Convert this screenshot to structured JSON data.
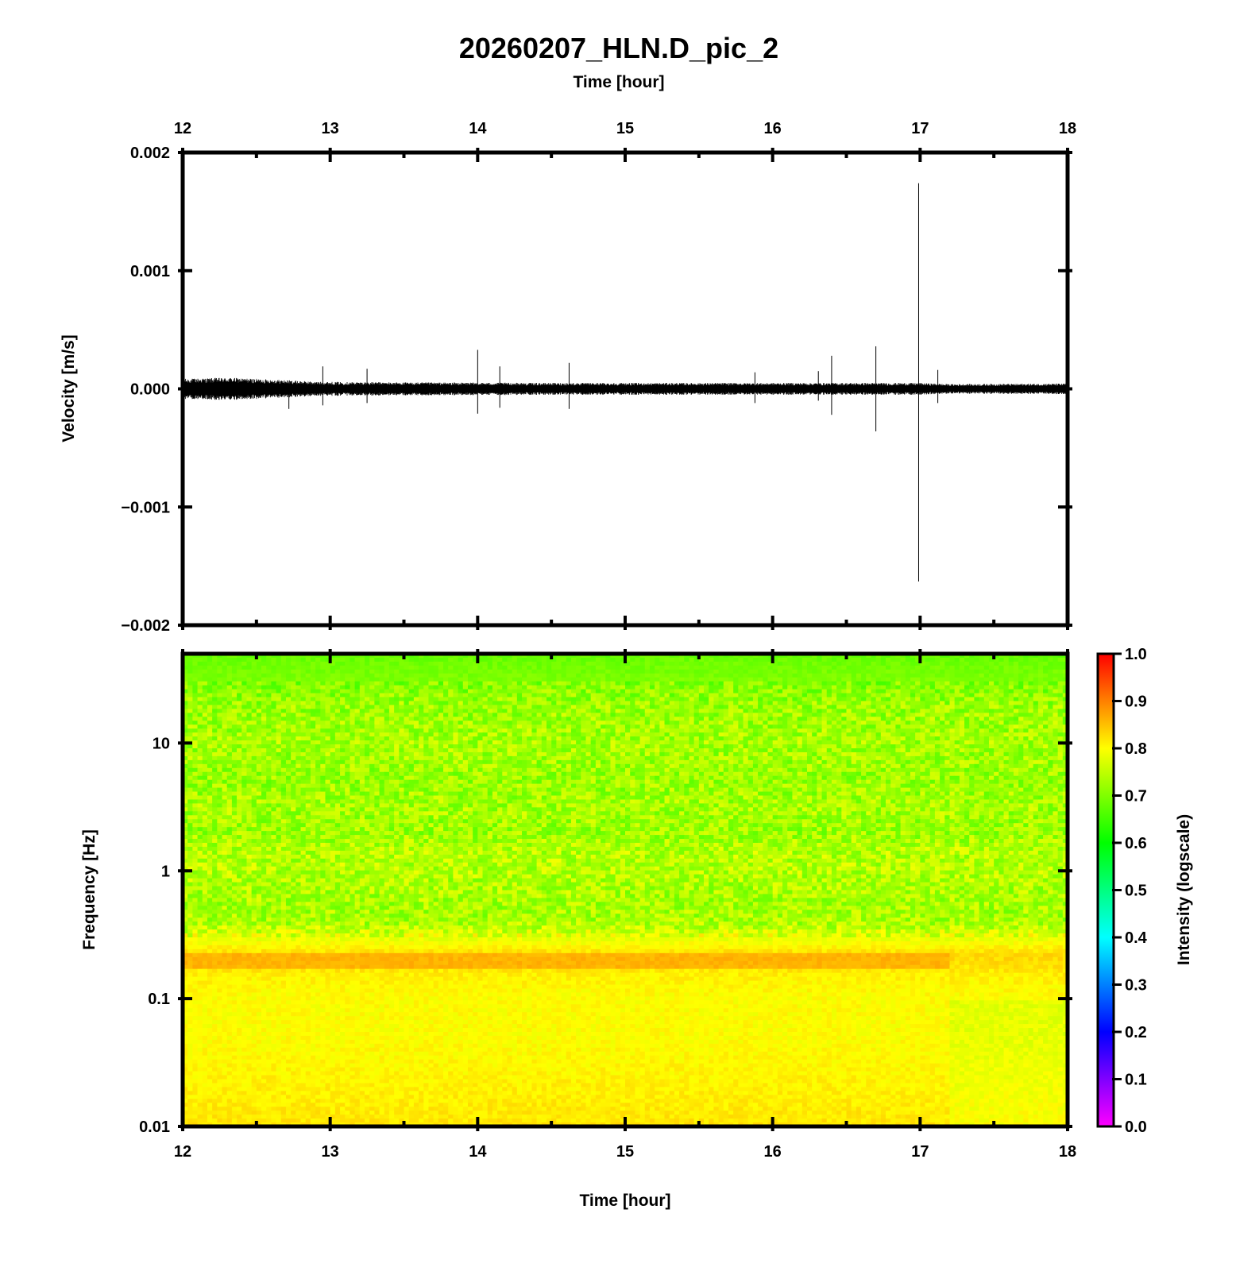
{
  "chart_data": [
    {
      "type": "line",
      "title": "20260207_HLN.D_pic_2",
      "xlabel": "Time [hour]",
      "ylabel": "Velocity [m/s]",
      "xlim": [
        12,
        18
      ],
      "ylim": [
        -0.002,
        0.002
      ],
      "x_ticks": [
        "12",
        "13",
        "14",
        "15",
        "16",
        "17",
        "18"
      ],
      "y_ticks": [
        "0.002",
        "0.001",
        "0.000",
        "−0.001",
        "−0.002"
      ],
      "y_tick_values": [
        0.002,
        0.001,
        0.0,
        -0.001,
        -0.002
      ],
      "grid": false,
      "line_color": "#000000",
      "series": [
        {
          "noise_envelope": {
            "t": [
              12.0,
              12.3,
              12.6,
              12.9,
              13.5,
              14.5,
              15.5,
              16.5,
              17.0,
              17.2,
              18.0
            ],
            "amp": [
              8.5e-05,
              9.5e-05,
              8e-05,
              6e-05,
              5.5e-05,
              5e-05,
              5e-05,
              5e-05,
              5e-05,
              4e-05,
              4.5e-05
            ]
          },
          "spikes": [
            {
              "t": 12.72,
              "max": 4e-05,
              "min": -0.00017
            },
            {
              "t": 12.95,
              "max": 0.00019,
              "min": -0.00014
            },
            {
              "t": 13.25,
              "max": 0.00017,
              "min": -0.00012
            },
            {
              "t": 14.0,
              "max": 0.00033,
              "min": -0.00021
            },
            {
              "t": 14.15,
              "max": 0.00019,
              "min": -0.00016
            },
            {
              "t": 14.62,
              "max": 0.00022,
              "min": -0.00017
            },
            {
              "t": 15.88,
              "max": 0.00014,
              "min": -0.00012
            },
            {
              "t": 16.31,
              "max": 0.00015,
              "min": -0.0001
            },
            {
              "t": 16.4,
              "max": 0.00028,
              "min": -0.00022
            },
            {
              "t": 16.7,
              "max": 0.00036,
              "min": -0.00036
            },
            {
              "t": 16.99,
              "max": 0.00174,
              "min": -0.00163
            },
            {
              "t": 17.12,
              "max": 0.00016,
              "min": -0.00012
            }
          ]
        }
      ]
    },
    {
      "type": "heatmap",
      "xlabel": "Time [hour]",
      "ylabel": "Frequency [Hz]",
      "xlim": [
        12,
        18
      ],
      "ylim": [
        0.01,
        50
      ],
      "y_scale": "log",
      "x_ticks": [
        "12",
        "13",
        "14",
        "15",
        "16",
        "17",
        "18"
      ],
      "y_ticks": [
        "10",
        "1",
        "0.1",
        "0.01"
      ],
      "y_tick_values": [
        10,
        1,
        0.1,
        0.01
      ],
      "grid": false,
      "colorbar": {
        "label": "Intensity (logscale)",
        "range": [
          0.0,
          1.0
        ],
        "ticks": [
          "1.0",
          "0.9",
          "0.8",
          "0.7",
          "0.6",
          "0.5",
          "0.4",
          "0.3",
          "0.2",
          "0.1",
          "0.0"
        ],
        "tick_values": [
          1.0,
          0.9,
          0.8,
          0.7,
          0.6,
          0.5,
          0.4,
          0.3,
          0.2,
          0.1,
          0.0
        ],
        "colors": [
          "#ff00ff",
          "#8000ff",
          "#0000ff",
          "#0080ff",
          "#00ffff",
          "#00ff80",
          "#00ff00",
          "#80ff00",
          "#ffff00",
          "#ff8000",
          "#ff0000"
        ]
      },
      "intensity_profile": {
        "freq_hz": [
          50,
          30,
          20,
          10,
          5,
          3,
          2,
          1.5,
          1.0,
          0.6,
          0.4,
          0.3,
          0.22,
          0.2,
          0.15,
          0.1,
          0.05,
          0.02,
          0.01
        ],
        "intensity": [
          0.68,
          0.7,
          0.72,
          0.73,
          0.72,
          0.73,
          0.72,
          0.74,
          0.74,
          0.73,
          0.73,
          0.78,
          0.83,
          0.83,
          0.81,
          0.8,
          0.8,
          0.81,
          0.82
        ]
      },
      "notes_bands": [
        {
          "freq_hz": 0.2,
          "t_end": 17.2,
          "intensity": 0.86
        }
      ]
    }
  ]
}
